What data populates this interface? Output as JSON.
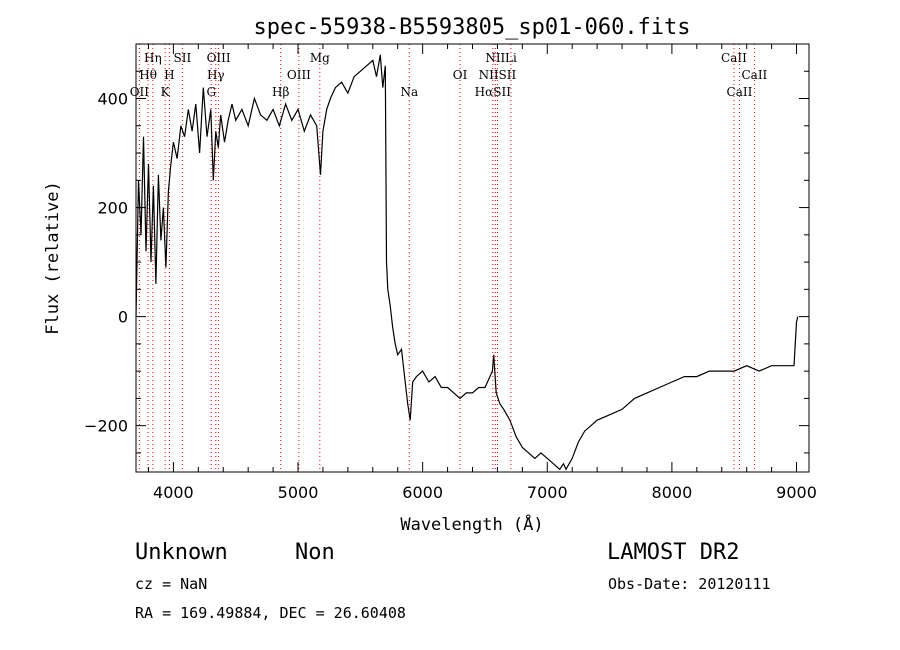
{
  "chart_data": {
    "type": "line",
    "title": "spec-55938-B5593805_sp01-060.fits",
    "xlabel": "Wavelength (Å)",
    "ylabel": "Flux (relative)",
    "xlim": [
      3700,
      9100
    ],
    "ylim": [
      -285,
      500
    ],
    "xticks": [
      4000,
      5000,
      6000,
      7000,
      8000,
      9000
    ],
    "yticks": [
      -200,
      0,
      200,
      400
    ],
    "grid": false,
    "line_color": "#000000",
    "marker_color": "#ff0000",
    "spectrum": {
      "x": [
        3700,
        3720,
        3740,
        3760,
        3780,
        3800,
        3820,
        3840,
        3860,
        3880,
        3900,
        3920,
        3940,
        3960,
        3980,
        4000,
        4030,
        4060,
        4090,
        4120,
        4150,
        4180,
        4210,
        4240,
        4270,
        4300,
        4320,
        4340,
        4360,
        4380,
        4410,
        4440,
        4470,
        4500,
        4550,
        4600,
        4650,
        4700,
        4750,
        4800,
        4850,
        4900,
        4950,
        5000,
        5050,
        5100,
        5150,
        5180,
        5200,
        5230,
        5260,
        5300,
        5350,
        5400,
        5450,
        5500,
        5550,
        5600,
        5630,
        5660,
        5680,
        5700,
        5710,
        5720,
        5740,
        5760,
        5780,
        5800,
        5830,
        5860,
        5880,
        5900,
        5920,
        5950,
        6000,
        6050,
        6100,
        6150,
        6200,
        6250,
        6300,
        6350,
        6400,
        6450,
        6500,
        6540,
        6560,
        6570,
        6590,
        6620,
        6650,
        6700,
        6750,
        6800,
        6850,
        6900,
        6950,
        7000,
        7050,
        7100,
        7130,
        7150,
        7200,
        7250,
        7300,
        7350,
        7400,
        7500,
        7600,
        7700,
        7800,
        7900,
        8000,
        8100,
        8200,
        8300,
        8400,
        8500,
        8600,
        8700,
        8800,
        8900,
        8980,
        9000,
        9010
      ],
      "y": [
        0,
        250,
        150,
        330,
        120,
        280,
        100,
        240,
        60,
        260,
        140,
        200,
        90,
        230,
        280,
        320,
        290,
        350,
        330,
        380,
        340,
        390,
        300,
        420,
        330,
        380,
        250,
        340,
        310,
        370,
        320,
        360,
        390,
        360,
        380,
        350,
        400,
        370,
        360,
        380,
        350,
        390,
        360,
        380,
        340,
        370,
        350,
        260,
        340,
        380,
        400,
        420,
        430,
        410,
        440,
        450,
        460,
        470,
        440,
        480,
        420,
        460,
        100,
        50,
        20,
        -20,
        -50,
        -70,
        -60,
        -120,
        -160,
        -190,
        -120,
        -110,
        -100,
        -120,
        -110,
        -130,
        -130,
        -140,
        -150,
        -140,
        -140,
        -130,
        -130,
        -110,
        -100,
        -70,
        -140,
        -160,
        -170,
        -190,
        -220,
        -240,
        -250,
        -260,
        -250,
        -260,
        -270,
        -280,
        -270,
        -280,
        -260,
        -230,
        -210,
        -200,
        -190,
        -180,
        -170,
        -150,
        -140,
        -130,
        -120,
        -110,
        -110,
        -100,
        -100,
        -100,
        -90,
        -100,
        -90,
        -90,
        -90,
        -10,
        0
      ]
    },
    "line_markers": [
      {
        "label": "Hη",
        "wavelength": 3835,
        "row": 0
      },
      {
        "label": "Hθ",
        "wavelength": 3797,
        "row": 1
      },
      {
        "label": "OII",
        "wavelength": 3727,
        "row": 2
      },
      {
        "label": "H",
        "wavelength": 3968,
        "row": 1
      },
      {
        "label": "K",
        "wavelength": 3934,
        "row": 2
      },
      {
        "label": "SII",
        "wavelength": 4072,
        "row": 0
      },
      {
        "label": "OIII",
        "wavelength": 4363,
        "row": 0
      },
      {
        "label": "Hγ",
        "wavelength": 4340,
        "row": 1
      },
      {
        "label": "G",
        "wavelength": 4304,
        "row": 2
      },
      {
        "label": "Mg",
        "wavelength": 5175,
        "row": 0
      },
      {
        "label": "OIII",
        "wavelength": 5007,
        "row": 1
      },
      {
        "label": "Hβ",
        "wavelength": 4861,
        "row": 2
      },
      {
        "label": "Na",
        "wavelength": 5893,
        "row": 2
      },
      {
        "label": "NII",
        "wavelength": 6583,
        "row": 0
      },
      {
        "label": "Li",
        "wavelength": 6708,
        "row": 0
      },
      {
        "label": "OI",
        "wavelength": 6300,
        "row": 1
      },
      {
        "label": "NIISII",
        "wavelength": 6600,
        "row": 1
      },
      {
        "label": "HαSII",
        "wavelength": 6563,
        "row": 2
      },
      {
        "label": "CaII",
        "wavelength": 8498,
        "row": 0
      },
      {
        "label": "CaII",
        "wavelength": 8662,
        "row": 1
      },
      {
        "label": "CaII",
        "wavelength": 8542,
        "row": 2
      }
    ]
  },
  "footer": {
    "object_class": "Unknown",
    "subclass": "Non",
    "survey": "LAMOST DR2",
    "redshift": "cz = NaN",
    "obs_date": "Obs-Date: 20120111",
    "coords": "RA = 169.49884, DEC =  26.60408"
  }
}
